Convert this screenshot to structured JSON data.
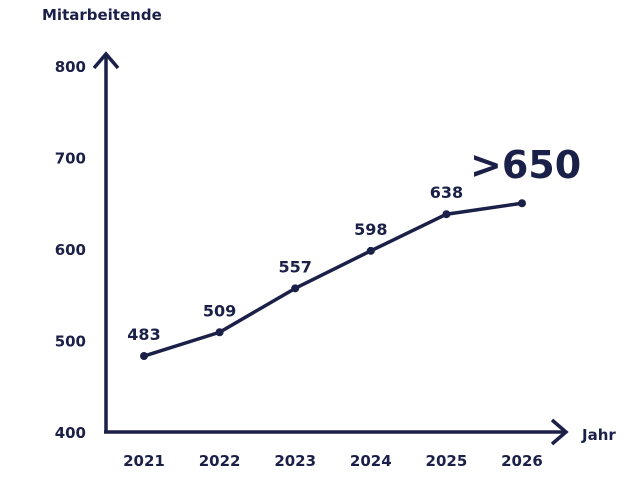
{
  "colors": {
    "ink": "#1b2048",
    "background": "#ffffff"
  },
  "chart_data": {
    "type": "line",
    "ylabel": "Mitarbeitende",
    "xlabel": "Jahr",
    "ylim": [
      400,
      800
    ],
    "yticks": [
      400,
      500,
      600,
      700,
      800
    ],
    "categories": [
      "2021",
      "2022",
      "2023",
      "2024",
      "2025",
      "2026"
    ],
    "values": [
      483,
      509,
      557,
      598,
      638,
      650
    ],
    "data_labels": [
      "483",
      "509",
      "557",
      "598",
      "638",
      ">650"
    ],
    "grid": false,
    "legend": "none"
  }
}
